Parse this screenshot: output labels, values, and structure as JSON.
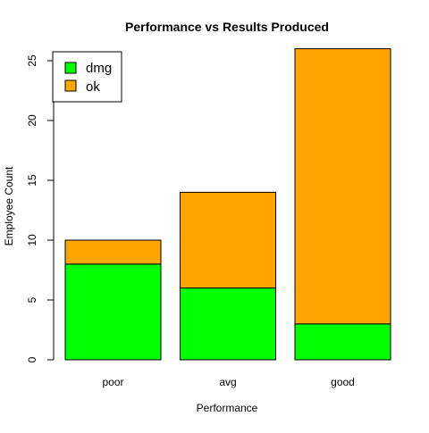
{
  "chart_data": {
    "type": "bar",
    "stacked": true,
    "title": "Performance vs Results Produced",
    "xlabel": "Performance",
    "ylabel": "Employee Count",
    "categories": [
      "poor",
      "avg",
      "good"
    ],
    "series": [
      {
        "name": "dmg",
        "values": [
          8,
          6,
          3
        ],
        "color": "#00ff00"
      },
      {
        "name": "ok",
        "values": [
          2,
          8,
          23
        ],
        "color": "#ffa500"
      }
    ],
    "ylim": [
      0,
      27
    ],
    "yticks": [
      0,
      5,
      10,
      15,
      20,
      25
    ],
    "grid": false,
    "legend": {
      "position": "top-left"
    }
  }
}
